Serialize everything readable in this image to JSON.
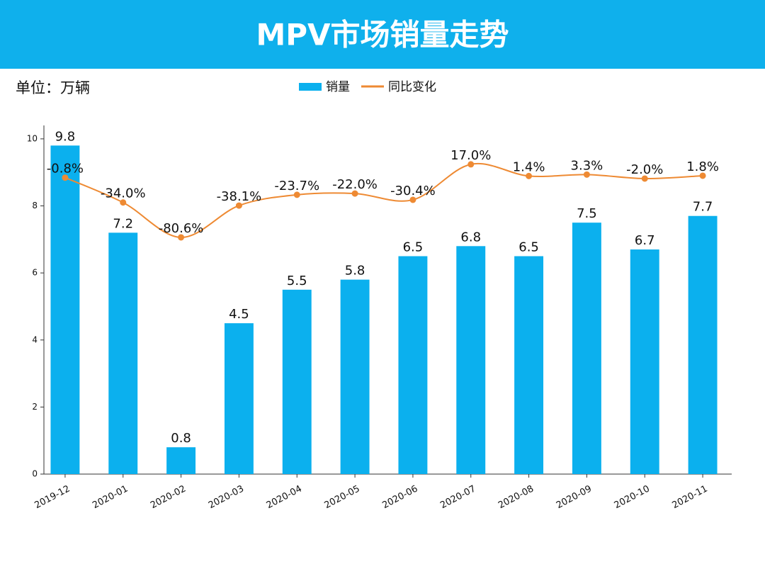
{
  "chart_data": {
    "type": "bar",
    "title": "MPV市场销量走势",
    "unit_label": "单位：万辆",
    "categories": [
      "2019-12",
      "2020-01",
      "2020-02",
      "2020-03",
      "2020-04",
      "2020-05",
      "2020-06",
      "2020-07",
      "2020-08",
      "2020-09",
      "2020-10",
      "2020-11"
    ],
    "series": [
      {
        "name": "销量",
        "type": "bar",
        "color": "#0bb0ee",
        "values": [
          9.8,
          7.2,
          0.8,
          4.5,
          5.5,
          5.8,
          6.5,
          6.8,
          6.5,
          7.5,
          6.7,
          7.7
        ]
      },
      {
        "name": "同比变化",
        "type": "line",
        "axis": "y2",
        "color": "#ee8a33",
        "values": [
          -0.8,
          -34.0,
          -80.6,
          -38.1,
          -23.7,
          -22.0,
          -30.4,
          17.0,
          1.4,
          3.3,
          -2.0,
          1.8
        ],
        "value_labels": [
          "-0.8%",
          "-34.0%",
          "-80.6%",
          "-38.1%",
          "-23.7%",
          "-22.0%",
          "-30.4%",
          "17.0%",
          "1.4%",
          "3.3%",
          "-2.0%",
          "1.8%"
        ]
      }
    ],
    "ylim": [
      0,
      10.4
    ],
    "yticks": [
      0,
      2,
      4,
      6,
      8,
      10
    ],
    "y2lim": [
      -397,
      69
    ],
    "legend": "top"
  }
}
